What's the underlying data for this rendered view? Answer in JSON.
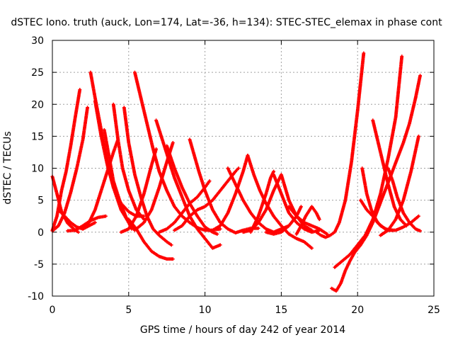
{
  "chart_data": {
    "type": "scatter",
    "title": "dSTEC Iono. truth (auck, Lon=174, Lat=-36, h=134): STEC-STEC_elemax in phase cont",
    "xlabel": "GPS time / hours of day 242 of year 2014",
    "ylabel": "dSTEC  / TECUs",
    "xlim": [
      0,
      25
    ],
    "ylim": [
      -10,
      30
    ],
    "xticks": [
      0,
      5,
      10,
      15,
      20,
      25
    ],
    "yticks": [
      -10,
      -5,
      0,
      5,
      10,
      15,
      20,
      25,
      30
    ],
    "grid": true,
    "marker": "plus",
    "color": "#ff0000",
    "series": [
      {
        "x": [
          0.0,
          0.3,
          0.6,
          1.0,
          1.4,
          1.7
        ],
        "y": [
          8.7,
          6.0,
          3.2,
          1.4,
          0.5,
          0.0
        ]
      },
      {
        "x": [
          0.0,
          0.3,
          0.6,
          0.9,
          1.2,
          1.5,
          1.8
        ],
        "y": [
          0.3,
          2.5,
          6.5,
          9.5,
          13.5,
          18.0,
          22.3
        ]
      },
      {
        "x": [
          0.0,
          0.4,
          0.8,
          1.2,
          1.6,
          2.0,
          2.3
        ],
        "y": [
          0.2,
          1.0,
          3.0,
          6.2,
          10.0,
          14.5,
          19.5
        ]
      },
      {
        "x": [
          0.4,
          0.8,
          1.2,
          1.6,
          2.0,
          2.4,
          2.8
        ],
        "y": [
          3.5,
          2.5,
          1.5,
          0.8,
          0.5,
          1.0,
          1.5
        ]
      },
      {
        "x": [
          1.0,
          1.5,
          2.0,
          2.5,
          3.0,
          3.5
        ],
        "y": [
          0.2,
          0.3,
          1.0,
          1.8,
          2.3,
          2.5
        ]
      },
      {
        "x": [
          2.5,
          2.8,
          3.2,
          3.6,
          4.0,
          4.5,
          5.0,
          5.4
        ],
        "y": [
          25.0,
          21.0,
          16.0,
          11.0,
          7.0,
          3.5,
          1.5,
          0.3
        ]
      },
      {
        "x": [
          2.8,
          3.2,
          3.6,
          4.0,
          4.5,
          5.0,
          5.5,
          6.0
        ],
        "y": [
          20.5,
          15.0,
          10.5,
          7.0,
          4.5,
          3.2,
          2.5,
          2.5
        ]
      },
      {
        "x": [
          2.0,
          2.4,
          2.8,
          3.2,
          3.6,
          4.0,
          4.3
        ],
        "y": [
          0.5,
          1.5,
          3.5,
          6.5,
          9.5,
          12.5,
          14.5
        ]
      },
      {
        "x": [
          3.4,
          3.7,
          4.0,
          4.4,
          4.8,
          5.2
        ],
        "y": [
          16.0,
          12.0,
          8.0,
          5.0,
          2.5,
          0.5
        ]
      },
      {
        "x": [
          4.0,
          4.3,
          4.6,
          5.0,
          5.5,
          6.0
        ],
        "y": [
          20.0,
          14.5,
          10.0,
          6.5,
          3.5,
          2.0
        ]
      },
      {
        "x": [
          4.7,
          5.0,
          5.4,
          5.8,
          6.2,
          6.6,
          7.0,
          7.5,
          7.8
        ],
        "y": [
          19.5,
          14.0,
          9.0,
          5.5,
          2.5,
          0.5,
          -0.5,
          -1.5,
          -2.0
        ]
      },
      {
        "x": [
          5.0,
          5.5,
          6.0,
          6.5,
          7.0,
          7.5,
          7.9
        ],
        "y": [
          2.0,
          0.5,
          -1.5,
          -3.0,
          -3.8,
          -4.2,
          -4.2
        ]
      },
      {
        "x": [
          5.4,
          5.8,
          6.2,
          6.6,
          7.0,
          7.5,
          8.0,
          8.5,
          9.0,
          9.5,
          10.0,
          10.5,
          11.0
        ],
        "y": [
          25.0,
          21.0,
          17.0,
          13.0,
          9.5,
          6.5,
          4.0,
          2.5,
          1.5,
          0.7,
          0.3,
          0.3,
          0.5
        ]
      },
      {
        "x": [
          4.5,
          5.0,
          5.5,
          6.0,
          6.5,
          6.8
        ],
        "y": [
          0.0,
          0.5,
          2.5,
          6.0,
          10.5,
          13.0
        ]
      },
      {
        "x": [
          6.8,
          7.2,
          7.6,
          8.0,
          8.5,
          9.0,
          9.5,
          10.0,
          10.5,
          11.0
        ],
        "y": [
          17.5,
          14.5,
          11.5,
          8.5,
          5.5,
          2.5,
          0.5,
          -1.0,
          -2.5,
          -2.0
        ]
      },
      {
        "x": [
          7.5,
          8.0,
          8.5,
          9.0,
          9.5,
          10.0,
          10.5,
          10.8
        ],
        "y": [
          13.5,
          10.0,
          7.0,
          4.5,
          2.5,
          0.8,
          0.0,
          -0.3
        ]
      },
      {
        "x": [
          5.5,
          6.0,
          6.5,
          7.0,
          7.5,
          7.9
        ],
        "y": [
          0.5,
          1.5,
          3.5,
          7.0,
          11.0,
          14.0
        ]
      },
      {
        "x": [
          9.0,
          9.3,
          9.6,
          10.0,
          10.5,
          11.0,
          11.5,
          12.0,
          12.5,
          13.0,
          13.5
        ],
        "y": [
          14.5,
          12.0,
          9.5,
          6.5,
          3.5,
          1.5,
          0.5,
          -0.1,
          0.3,
          0.6,
          0.6
        ]
      },
      {
        "x": [
          7.0,
          7.5,
          8.0,
          8.5,
          9.0,
          9.5,
          10.0,
          10.3
        ],
        "y": [
          0.0,
          0.5,
          1.5,
          3.0,
          4.5,
          5.5,
          7.0,
          8.0
        ]
      },
      {
        "x": [
          8.0,
          8.5,
          9.0,
          9.5,
          10.0,
          10.5,
          11.0,
          11.5,
          12.0,
          12.2
        ],
        "y": [
          0.3,
          1.0,
          2.5,
          3.5,
          4.0,
          5.0,
          6.5,
          8.0,
          9.5,
          10.0
        ]
      },
      {
        "x": [
          11.5,
          12.0,
          12.5,
          13.0,
          13.5,
          14.0,
          14.5,
          15.0,
          15.5
        ],
        "y": [
          10.0,
          7.5,
          5.0,
          3.0,
          1.5,
          0.5,
          0.0,
          0.5,
          1.0
        ]
      },
      {
        "x": [
          10.5,
          11.0,
          11.5,
          12.0,
          12.5,
          12.8
        ],
        "y": [
          0.3,
          1.0,
          3.0,
          6.0,
          9.5,
          12.0
        ]
      },
      {
        "x": [
          12.8,
          13.2,
          13.6,
          14.0,
          14.5,
          15.0,
          15.5,
          16.0,
          16.5,
          17.0
        ],
        "y": [
          12.0,
          9.0,
          6.5,
          4.5,
          2.5,
          1.0,
          -0.3,
          -1.0,
          -1.5,
          -2.5
        ]
      },
      {
        "x": [
          12.5,
          13.0,
          13.5,
          14.0,
          14.5,
          15.0,
          15.5,
          16.0,
          16.5,
          17.0
        ],
        "y": [
          0.0,
          0.3,
          1.5,
          3.5,
          6.5,
          9.0,
          5.0,
          2.5,
          1.0,
          0.3
        ]
      },
      {
        "x": [
          13.0,
          13.5,
          14.0,
          14.3,
          14.5
        ],
        "y": [
          0.0,
          2.5,
          6.0,
          8.5,
          9.5
        ]
      },
      {
        "x": [
          14.5,
          15.0,
          15.5,
          16.0,
          16.5,
          17.0,
          17.5
        ],
        "y": [
          9.0,
          6.0,
          3.0,
          1.5,
          0.5,
          0.0,
          0.3
        ]
      },
      {
        "x": [
          14.0,
          14.5,
          15.0,
          15.5,
          16.0,
          16.3
        ],
        "y": [
          0.0,
          -0.3,
          0.0,
          1.0,
          2.5,
          4.0
        ]
      },
      {
        "x": [
          15.5,
          16.0,
          16.5,
          17.0,
          17.5,
          18.0
        ],
        "y": [
          4.0,
          2.5,
          1.5,
          1.0,
          0.5,
          -0.3
        ]
      },
      {
        "x": [
          16.0,
          16.3,
          16.6,
          17.0,
          17.3,
          17.5
        ],
        "y": [
          -0.3,
          1.0,
          2.5,
          4.0,
          3.0,
          2.0
        ]
      },
      {
        "x": [
          17.3,
          17.6,
          17.9,
          18.2,
          18.5,
          18.8,
          19.2,
          19.6,
          20.0,
          20.4
        ],
        "y": [
          0.0,
          -0.5,
          -0.8,
          -0.5,
          0.0,
          1.5,
          5.0,
          11.0,
          19.0,
          28.0
        ]
      },
      {
        "x": [
          18.3,
          18.6,
          18.9,
          19.2,
          19.5,
          19.8,
          20.2,
          20.6,
          21.0,
          21.4,
          21.8,
          22.2,
          22.6,
          23.0,
          23.4,
          23.8,
          24.1
        ],
        "y": [
          -8.8,
          -9.2,
          -8.0,
          -6.0,
          -4.5,
          -3.2,
          -2.0,
          -0.5,
          1.5,
          4.0,
          6.5,
          9.0,
          11.5,
          14.0,
          17.0,
          21.0,
          24.5
        ]
      },
      {
        "x": [
          18.5,
          19.0,
          19.5,
          20.0,
          20.5,
          21.0,
          21.5,
          22.0,
          22.5,
          22.9
        ],
        "y": [
          -5.5,
          -4.5,
          -3.5,
          -2.0,
          -0.5,
          2.0,
          6.0,
          11.5,
          18.0,
          27.5
        ]
      },
      {
        "x": [
          20.3,
          20.6,
          20.9,
          21.3,
          21.8,
          22.3
        ],
        "y": [
          10.0,
          6.0,
          3.5,
          1.5,
          0.5,
          0.3
        ]
      },
      {
        "x": [
          21.0,
          21.3,
          21.6,
          22.0,
          22.4,
          22.8,
          23.2
        ],
        "y": [
          17.5,
          14.5,
          11.5,
          7.5,
          4.0,
          2.0,
          1.0
        ]
      },
      {
        "x": [
          20.2,
          20.6,
          21.0,
          21.5,
          22.0,
          22.5,
          23.0,
          23.5,
          24.0
        ],
        "y": [
          5.0,
          3.5,
          2.5,
          1.0,
          0.3,
          0.3,
          0.8,
          1.5,
          2.5
        ]
      },
      {
        "x": [
          22.0,
          22.3,
          22.6,
          23.0,
          23.4,
          23.8,
          24.1
        ],
        "y": [
          10.0,
          8.0,
          5.5,
          3.0,
          1.5,
          0.5,
          0.2
        ]
      },
      {
        "x": [
          21.5,
          22.0,
          22.5,
          23.0,
          23.5,
          24.0
        ],
        "y": [
          -0.5,
          0.3,
          2.0,
          5.0,
          9.5,
          15.0
        ]
      }
    ]
  }
}
